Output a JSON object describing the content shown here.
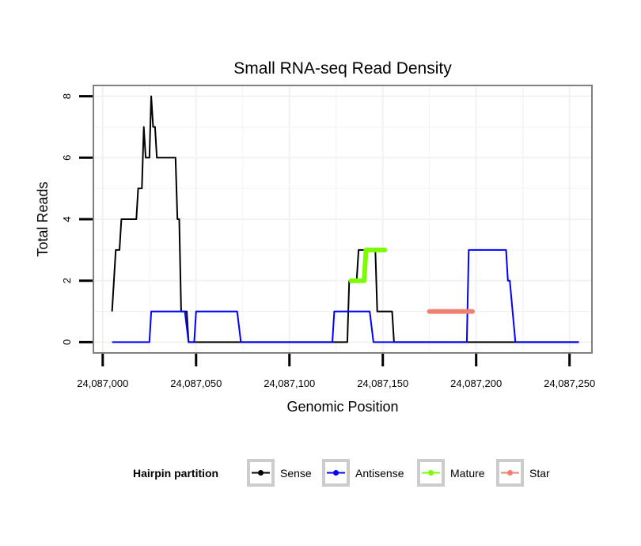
{
  "chart_data": {
    "type": "line",
    "title": "Small RNA-seq Read Density",
    "xlabel": "Genomic Position",
    "ylabel": "Total Reads",
    "xlim": [
      24086995,
      24087262
    ],
    "ylim": [
      -0.35,
      8.35
    ],
    "x_ticks": [
      24087000,
      24087050,
      24087100,
      24087150,
      24087200,
      24087250
    ],
    "x_tick_labels": [
      "24,087,000",
      "24,087,050",
      "24,087,100",
      "24,087,150",
      "24,087,200",
      "24,087,250"
    ],
    "y_ticks": [
      0,
      2,
      4,
      6,
      8
    ],
    "y_tick_labels": [
      "0",
      "2",
      "4",
      "6",
      "8"
    ],
    "grid": true,
    "legend": {
      "title": "Hairpin partition",
      "position": "bottom",
      "entries": [
        "Sense",
        "Antisense",
        "Mature",
        "Star"
      ]
    },
    "series": [
      {
        "name": "Sense",
        "color": "#000000",
        "stroke": "thin",
        "points": [
          [
            24087005,
            1
          ],
          [
            24087007,
            3
          ],
          [
            24087009,
            3
          ],
          [
            24087010,
            4
          ],
          [
            24087018,
            4
          ],
          [
            24087019,
            5
          ],
          [
            24087021,
            5
          ],
          [
            24087022,
            7
          ],
          [
            24087023,
            6
          ],
          [
            24087025,
            6
          ],
          [
            24087026,
            8
          ],
          [
            24087027,
            7
          ],
          [
            24087028,
            7
          ],
          [
            24087029,
            6
          ],
          [
            24087039,
            6
          ],
          [
            24087040,
            4
          ],
          [
            24087041,
            4
          ],
          [
            24087042,
            1
          ],
          [
            24087045,
            1
          ],
          [
            24087046,
            0
          ],
          [
            24087131,
            0
          ],
          [
            24087132,
            2
          ],
          [
            24087136,
            2
          ],
          [
            24087137,
            3
          ],
          [
            24087146,
            3
          ],
          [
            24087147,
            1
          ],
          [
            24087155,
            1
          ],
          [
            24087156,
            0
          ],
          [
            24087255,
            0
          ]
        ]
      },
      {
        "name": "Antisense",
        "color": "#0000ff",
        "stroke": "thin",
        "points": [
          [
            24087005,
            0
          ],
          [
            24087025,
            0
          ],
          [
            24087026,
            1
          ],
          [
            24087044,
            1
          ],
          [
            24087046,
            0
          ],
          [
            24087049,
            0
          ],
          [
            24087050,
            1
          ],
          [
            24087072,
            1
          ],
          [
            24087074,
            0
          ],
          [
            24087123,
            0
          ],
          [
            24087124,
            1
          ],
          [
            24087143,
            1
          ],
          [
            24087145,
            0
          ],
          [
            24087195,
            0
          ],
          [
            24087196,
            3
          ],
          [
            24087216,
            3
          ],
          [
            24087217,
            2
          ],
          [
            24087218,
            2
          ],
          [
            24087221,
            0
          ],
          [
            24087255,
            0
          ]
        ]
      },
      {
        "name": "Mature",
        "color": "#7cfc00",
        "stroke": "thick",
        "points": [
          [
            24087133,
            2
          ],
          [
            24087140,
            2
          ],
          [
            24087141,
            3
          ],
          [
            24087151,
            3
          ]
        ]
      },
      {
        "name": "Star",
        "color": "#f08070",
        "stroke": "thick",
        "points": [
          [
            24087175,
            1
          ],
          [
            24087198,
            1
          ]
        ]
      }
    ]
  }
}
